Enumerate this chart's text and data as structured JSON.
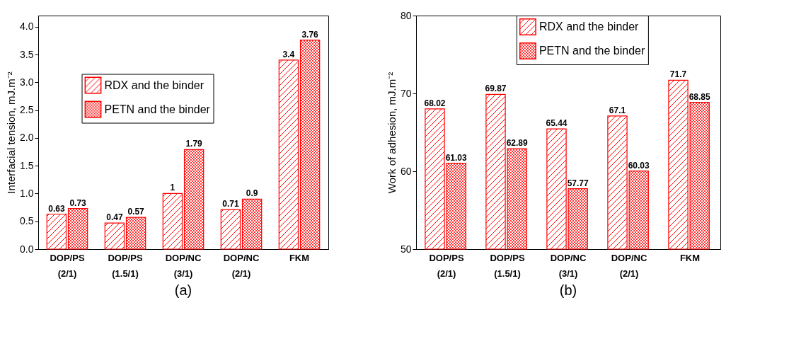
{
  "chart_data": [
    {
      "type": "bar",
      "ylabel": "Interfacial tension, mJ.m⁻²",
      "categories": [
        "DOP/PS\n(2/1)",
        "DOP/PS\n(1.5/1)",
        "DOP/NC\n(3/1)",
        "DOP/NC\n(2/1)",
        "FKM"
      ],
      "series": [
        {
          "name": "RDX and the binder",
          "color": "#ff0000",
          "values": [
            0.63,
            0.47,
            1,
            0.71,
            3.4
          ]
        },
        {
          "name": "PETN and the binder",
          "color": "#ff0000",
          "values": [
            0.73,
            0.57,
            1.79,
            0.9,
            3.76
          ]
        }
      ],
      "ylim": [
        0,
        4.2
      ],
      "yticks": [
        {
          "value": 0,
          "label": "0.0"
        },
        0.5,
        {
          "value": 1,
          "label": "1.0"
        },
        1.5,
        {
          "value": 2,
          "label": "2.0"
        },
        2.5,
        {
          "value": 3,
          "label": "3.0"
        },
        3.5,
        {
          "value": 4,
          "label": "4.0"
        }
      ],
      "data_labels": true,
      "legend": "top left",
      "grid": false,
      "annotations": [
        "(a)"
      ]
    },
    {
      "type": "bar",
      "ylabel": "Work of adhesion, mJ.m⁻²",
      "categories": [
        "DOP/PS\n(2/1)",
        "DOP/PS\n(1.5/1)",
        "DOP/NC\n(3/1)",
        "DOP/NC\n(2/1)",
        "FKM"
      ],
      "series": [
        {
          "name": "RDX and the binder",
          "color": "#ff0000",
          "values": [
            68.02,
            69.87,
            65.44,
            67.1,
            71.7
          ]
        },
        {
          "name": "PETN and the binder",
          "color": "#ff0000",
          "values": [
            61.03,
            62.89,
            57.77,
            60.03,
            68.85
          ]
        }
      ],
      "ylim": [
        50,
        80
      ],
      "yticks": [
        50,
        60,
        70,
        80
      ],
      "data_labels": true,
      "legend": "top",
      "grid": false,
      "annotations": [
        "(b)"
      ]
    }
  ]
}
